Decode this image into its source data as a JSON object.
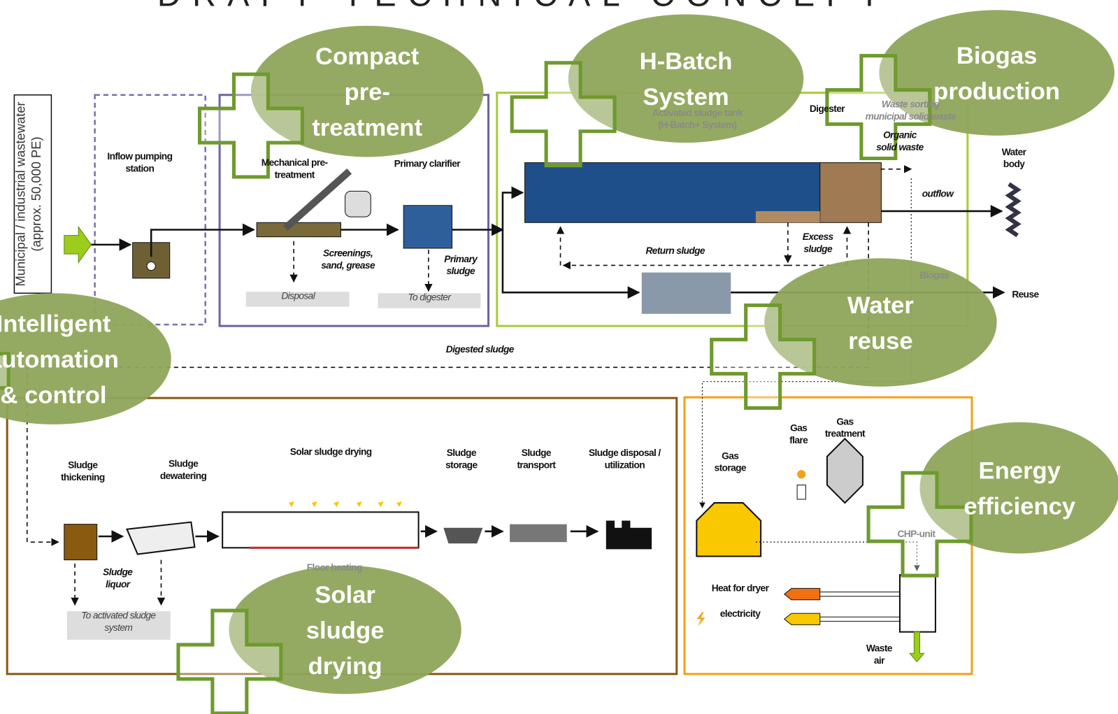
{
  "header": {
    "title": "DRAFT TECHNICAL CONCEPT"
  },
  "input_label": [
    "Municipal / industrial wastewater",
    "(approx. 50,000 PE)"
  ],
  "labels": {
    "inflow_pumping_station": [
      "Inflow pumping",
      "station"
    ],
    "mechanical_pretreatment": [
      "Mechanical pre-",
      "treatment"
    ],
    "primary_clarifier": "Primary clarifier",
    "screenings": [
      "Screenings,",
      "sand, grease"
    ],
    "primary_sludge": [
      "Primary",
      "sludge"
    ],
    "disposal": "Disposal",
    "to_digester": "To digester",
    "activated_sludge_tank": [
      "Activated sludge tank",
      "(H-Batch+ System)"
    ],
    "digester": "Digester",
    "waste_sorting": [
      "Waste sorting",
      "municipal solid waste"
    ],
    "organic_solid_waste": [
      "Organic",
      "solid waste"
    ],
    "water_body": [
      "Water",
      "body"
    ],
    "outflow": "outflow",
    "return_sludge": "Return sludge",
    "excess_sludge": [
      "Excess",
      "sludge"
    ],
    "biogas": "Biogas",
    "reuse": "Reuse",
    "digested_sludge": "Digested sludge",
    "sludge_thickening": [
      "Sludge",
      "thickening"
    ],
    "sludge_dewatering": [
      "Sludge",
      "dewatering"
    ],
    "solar_sludge_drying": "Solar sludge drying",
    "sludge_storage": [
      "Sludge",
      "storage"
    ],
    "sludge_transport": [
      "Sludge",
      "transport"
    ],
    "sludge_disposal": [
      "Sludge disposal /",
      "utilization"
    ],
    "sludge_liquor": [
      "Sludge",
      "liquor"
    ],
    "to_activated_sludge_system": [
      "To activated sludge",
      "system"
    ],
    "floor_heating": "Floor heating",
    "gas_storage": [
      "Gas",
      "storage"
    ],
    "gas_flare": [
      "Gas",
      "flare"
    ],
    "gas_treatment": [
      "Gas",
      "treatment"
    ],
    "chp_unit": "CHP-unit",
    "heat_for_dryer": "Heat for dryer",
    "electricity": "electricity",
    "waste_air": [
      "Waste",
      "air"
    ]
  },
  "highlights": [
    [
      "Compact",
      "pre-",
      "treatment"
    ],
    [
      "H-Batch",
      "System"
    ],
    [
      "Biogas",
      "production"
    ],
    [
      "Water",
      "reuse"
    ],
    [
      "Intelligent",
      "automation",
      "& control"
    ],
    [
      "Energy",
      "efficiency"
    ],
    [
      "Solar",
      "sludge",
      "drying"
    ]
  ]
}
